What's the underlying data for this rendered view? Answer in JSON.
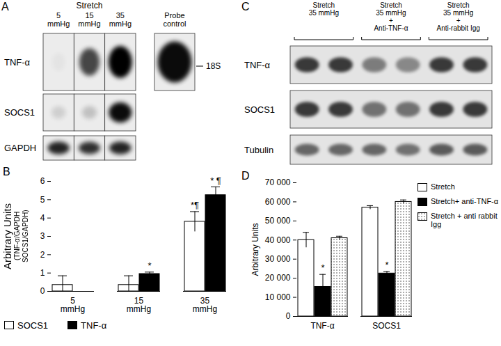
{
  "chart_data": [
    {
      "type": "blot",
      "title": "A",
      "subtitle": "Stretch",
      "categories": [
        "5\nmmHg",
        "15\nmmHg",
        "35\nmmHg"
      ],
      "series": [
        {
          "name": "TNF-α",
          "values": [
            0.03,
            0.7,
            1.0
          ]
        },
        {
          "name": "SOCS1",
          "values": [
            0.12,
            0.18,
            0.95
          ]
        },
        {
          "name": "GAPDH",
          "values": [
            0.85,
            0.8,
            0.85
          ]
        }
      ],
      "annotations": [
        "Probe\ncontrol",
        "18S"
      ]
    },
    {
      "type": "bar",
      "title": "B",
      "y_label": [
        "Arbitrary Units",
        "(TNF-α/GAPDH",
        "SOCS1/GAPDH)"
      ],
      "categories": [
        "5\nmmHg",
        "15\nmmHg",
        "35\nmmHg"
      ],
      "series": [
        {
          "name": "SOCS1",
          "color": "#ffffff",
          "values": [
            0.35,
            0.35,
            3.8
          ],
          "errors": [
            0.5,
            0.5,
            0.55
          ],
          "significance": [
            null,
            null,
            "*¶"
          ]
        },
        {
          "name": "TNF-α",
          "color": "#000000",
          "values": [
            0,
            0.95,
            5.25
          ],
          "errors": [
            null,
            0.1,
            0.45
          ],
          "significance": [
            null,
            "*",
            "* ¶"
          ]
        }
      ],
      "ylim": [
        0,
        6
      ],
      "yticks": [
        0,
        1,
        2,
        3,
        4,
        5,
        6
      ],
      "legend": "bottom"
    },
    {
      "type": "blot",
      "title": "C",
      "categories": [
        "Stretch\n35 mmHg",
        null,
        "Stretch\n35 mmHg\n+\nAnti-TNF-α",
        null,
        "Stretch\n35 mmHg\n+\nAnti-rabbit Igg",
        null
      ],
      "series": [
        {
          "name": "TNF-α",
          "values": [
            0.75,
            0.75,
            0.45,
            0.4,
            0.75,
            0.75
          ]
        },
        {
          "name": "SOCS1",
          "values": [
            0.75,
            0.75,
            0.5,
            0.5,
            0.75,
            0.75
          ]
        },
        {
          "name": "Tubulin",
          "values": [
            0.55,
            0.55,
            0.55,
            0.5,
            0.6,
            0.6
          ]
        }
      ]
    },
    {
      "type": "bar",
      "title": "D",
      "y_label": "Arbitrary Units",
      "categories": [
        "TNF-α",
        "SOCS1"
      ],
      "series": [
        {
          "name": "Stretch",
          "color": "#ffffff",
          "values": [
            40000,
            57000
          ],
          "errors": [
            4000,
            1000
          ]
        },
        {
          "name": "Stretch+ anti-TNF-α",
          "color": "#000000",
          "values": [
            15500,
            22500
          ],
          "errors": [
            6500,
            1000
          ],
          "significance": [
            "*",
            "*"
          ]
        },
        {
          "name": "Stretch + anti rabbit Igg",
          "color": "#ffffff",
          "marker": "dotted",
          "values": [
            41000,
            60000
          ],
          "errors": [
            1000,
            1000
          ]
        }
      ],
      "ylim": [
        0,
        70000
      ],
      "yticks": [
        0,
        {
          "value": 10000,
          "label": "10 000"
        },
        {
          "value": 20000,
          "label": "20 000"
        },
        {
          "value": 30000,
          "label": "30 000"
        },
        {
          "value": 40000,
          "label": "40 000"
        },
        {
          "value": 50000,
          "label": "50 000"
        },
        {
          "value": 60000,
          "label": "60 000"
        },
        {
          "value": 70000,
          "label": "70 000"
        }
      ],
      "legend": "right"
    }
  ]
}
